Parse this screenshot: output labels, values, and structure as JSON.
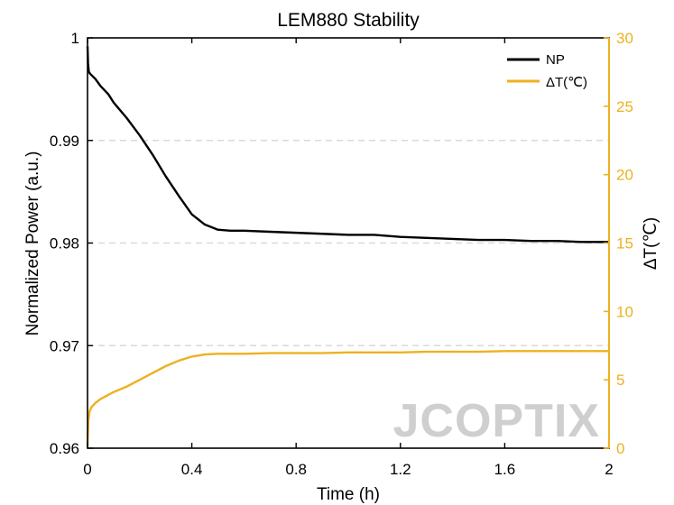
{
  "chart_data": {
    "type": "line",
    "title": "LEM880 Stability",
    "xlabel": "Time (h)",
    "ylabel": "Normalized Power (a.u.)",
    "y2label": "ΔT(℃)",
    "xlim": [
      0,
      2
    ],
    "ylim": [
      0.96,
      1
    ],
    "y2lim": [
      0,
      30
    ],
    "x_ticks": [
      0,
      0.4,
      0.8,
      1.2,
      1.6,
      2
    ],
    "x_tick_labels": [
      "0",
      "0.4",
      "0.8",
      "1.2",
      "1.6",
      "2"
    ],
    "y_ticks": [
      0.96,
      0.97,
      0.98,
      0.99,
      1
    ],
    "y_tick_labels": [
      "0.96",
      "0.97",
      "0.98",
      "0.99",
      "1"
    ],
    "y2_ticks": [
      0,
      5,
      10,
      15,
      20,
      25,
      30
    ],
    "y2_tick_labels": [
      "0",
      "5",
      "10",
      "15",
      "20",
      "25",
      "30"
    ],
    "grid": "horizontal dashed at y ticks",
    "legend_position": "top-right",
    "colors": {
      "np": "#000000",
      "dt": "#EDB120",
      "grid": "#d9d9d9"
    },
    "watermark": "JCOPTIX",
    "series": [
      {
        "name": "NP",
        "axis": "left",
        "x": [
          0,
          0.002,
          0.005,
          0.01,
          0.03,
          0.05,
          0.08,
          0.1,
          0.15,
          0.2,
          0.25,
          0.3,
          0.35,
          0.4,
          0.45,
          0.5,
          0.55,
          0.6,
          0.7,
          0.8,
          0.9,
          1.0,
          1.1,
          1.2,
          1.3,
          1.4,
          1.5,
          1.6,
          1.7,
          1.8,
          1.9,
          2.0
        ],
        "values": [
          0.9992,
          0.9975,
          0.9967,
          0.9965,
          0.996,
          0.9953,
          0.9945,
          0.9937,
          0.9922,
          0.9905,
          0.9886,
          0.9865,
          0.9846,
          0.9828,
          0.9818,
          0.9813,
          0.9812,
          0.9812,
          0.9811,
          0.981,
          0.9809,
          0.9808,
          0.9808,
          0.9806,
          0.9805,
          0.9804,
          0.9803,
          0.9803,
          0.9802,
          0.9802,
          0.9801,
          0.9801
        ]
      },
      {
        "name": "ΔT(℃)",
        "axis": "right",
        "x": [
          0,
          0.003,
          0.008,
          0.015,
          0.03,
          0.05,
          0.08,
          0.1,
          0.15,
          0.2,
          0.25,
          0.3,
          0.35,
          0.4,
          0.45,
          0.5,
          0.55,
          0.6,
          0.7,
          0.8,
          0.9,
          1.0,
          1.1,
          1.2,
          1.3,
          1.4,
          1.5,
          1.6,
          1.7,
          1.8,
          1.9,
          2.0
        ],
        "values": [
          0.2,
          2.0,
          2.7,
          3.0,
          3.3,
          3.6,
          3.9,
          4.1,
          4.5,
          5.0,
          5.5,
          6.0,
          6.4,
          6.7,
          6.85,
          6.9,
          6.9,
          6.9,
          6.95,
          6.95,
          6.95,
          7.0,
          7.0,
          7.0,
          7.05,
          7.05,
          7.05,
          7.1,
          7.1,
          7.1,
          7.1,
          7.1
        ]
      }
    ]
  }
}
